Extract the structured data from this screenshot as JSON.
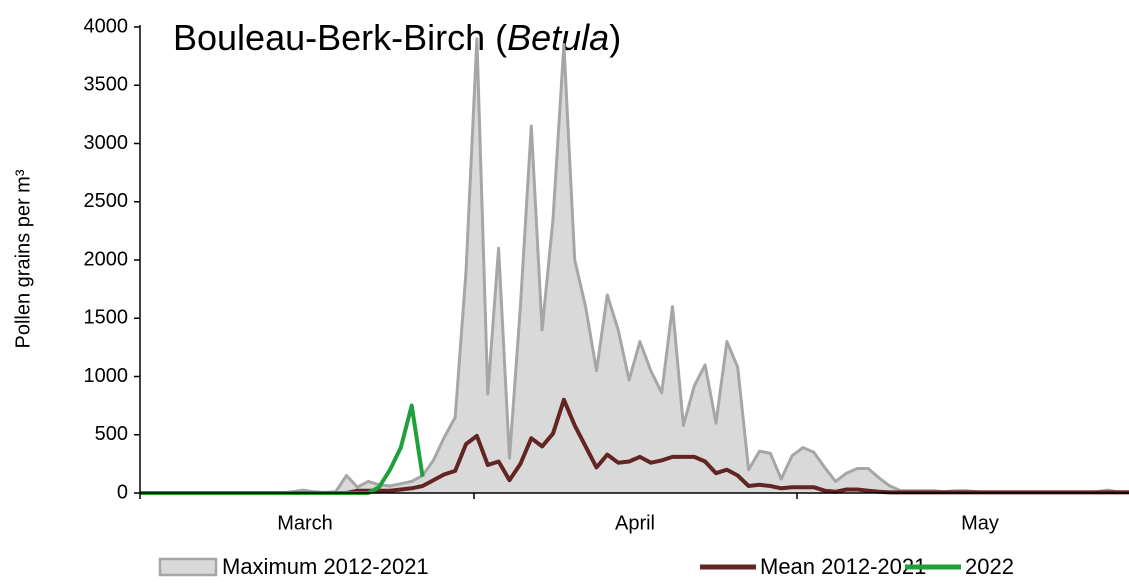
{
  "chart_data": {
    "type": "line",
    "title_parts": [
      "Bouleau-Berk-Birch (",
      "Betula",
      ")"
    ],
    "ylabel": "Pollen grains per m³",
    "month_labels": [
      "March",
      "April",
      "May"
    ],
    "categories": [
      null,
      null,
      null,
      null,
      null,
      null,
      null,
      null,
      null,
      null,
      null,
      null,
      null,
      null,
      null,
      null,
      null,
      null,
      null,
      null,
      null,
      null,
      null,
      null,
      null,
      null,
      null,
      null,
      null,
      null,
      null,
      null,
      null,
      null,
      null,
      null,
      null,
      null,
      null,
      null,
      null,
      null,
      null,
      null,
      null,
      null,
      null,
      null,
      null,
      null,
      null,
      null,
      null,
      null,
      null,
      null,
      null,
      null,
      null,
      null,
      null,
      null,
      null,
      null,
      null,
      null,
      null,
      null,
      null,
      null,
      null,
      null,
      null,
      null,
      null,
      null,
      null,
      null,
      null,
      null,
      null,
      null,
      null,
      null,
      null,
      null,
      null,
      null,
      null,
      null,
      null,
      null
    ],
    "ylim": [
      0,
      4000
    ],
    "yticks": [
      0,
      500,
      1000,
      1500,
      2000,
      2500,
      3000,
      3500,
      4000
    ],
    "series": [
      {
        "name": "Maximum 2012-2021",
        "color": "#a6a6a6",
        "fill": "#d9d9d9",
        "style": "area",
        "values": [
          0,
          0,
          0,
          0,
          0,
          0,
          0,
          0,
          0,
          0,
          0,
          0,
          0,
          0,
          10,
          25,
          10,
          5,
          10,
          150,
          50,
          100,
          70,
          60,
          80,
          100,
          150,
          280,
          480,
          650,
          1900,
          3900,
          850,
          2100,
          300,
          1600,
          3150,
          1400,
          2350,
          3850,
          2000,
          1600,
          1050,
          1700,
          1400,
          970,
          1300,
          1050,
          860,
          1600,
          580,
          920,
          1100,
          600,
          1300,
          1080,
          200,
          360,
          340,
          120,
          320,
          390,
          350,
          220,
          100,
          170,
          210,
          210,
          130,
          60,
          20,
          20,
          20,
          20,
          10,
          20,
          20,
          10,
          5,
          5,
          5,
          5,
          5,
          5,
          5,
          5,
          5,
          5,
          10,
          25,
          10,
          10
        ]
      },
      {
        "name": "Mean 2012-2021",
        "color": "#632523",
        "style": "line",
        "values": [
          0,
          0,
          0,
          0,
          0,
          0,
          0,
          0,
          0,
          0,
          0,
          0,
          0,
          0,
          0,
          0,
          0,
          0,
          0,
          0,
          20,
          20,
          20,
          20,
          30,
          40,
          60,
          110,
          160,
          190,
          420,
          490,
          240,
          270,
          110,
          250,
          470,
          400,
          510,
          800,
          580,
          400,
          220,
          330,
          260,
          270,
          310,
          260,
          280,
          310,
          310,
          310,
          270,
          170,
          200,
          150,
          60,
          70,
          60,
          40,
          50,
          50,
          50,
          20,
          10,
          30,
          30,
          20,
          10,
          5,
          5,
          5,
          5,
          5,
          5,
          5,
          5,
          5,
          5,
          5,
          5,
          5,
          5,
          5,
          5,
          5,
          5,
          5,
          5,
          5,
          5,
          5
        ]
      },
      {
        "name": "2022",
        "color": "#1fa03a",
        "style": "line",
        "values": [
          0,
          0,
          0,
          0,
          0,
          0,
          0,
          0,
          0,
          0,
          0,
          0,
          0,
          0,
          0,
          0,
          0,
          0,
          0,
          0,
          0,
          0,
          50,
          200,
          390,
          750,
          140,
          null,
          null,
          null,
          null,
          null,
          null,
          null,
          null,
          null,
          null,
          null,
          null,
          null,
          null,
          null,
          null,
          null,
          null,
          null,
          null,
          null,
          null,
          null,
          null,
          null,
          null,
          null,
          null,
          null,
          null,
          null,
          null,
          null,
          null,
          null,
          null,
          null,
          null,
          null,
          null,
          null,
          null,
          null,
          null,
          null,
          null,
          null,
          null,
          null,
          null,
          null,
          null,
          null,
          null,
          null,
          null,
          null,
          null,
          null,
          null,
          null,
          null,
          null,
          null,
          null
        ]
      }
    ],
    "legend": "bottom"
  }
}
